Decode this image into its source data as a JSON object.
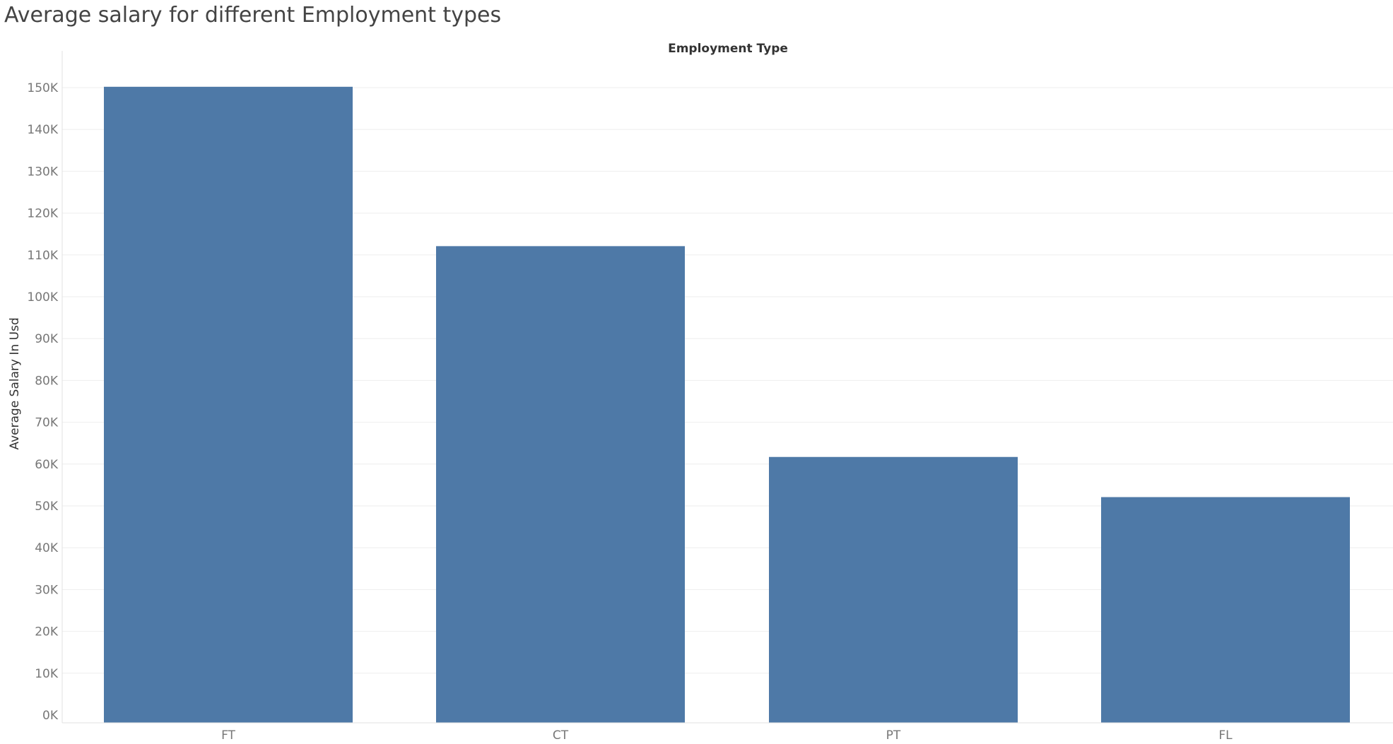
{
  "page": {
    "title": "Average salary for different Employment types"
  },
  "chart_data": {
    "type": "bar",
    "title": "Average salary for different Employment types",
    "column_header": "Employment Type",
    "xlabel": "",
    "ylabel": "Average Salary In Usd",
    "categories": [
      "FT",
      "CT",
      "PT",
      "FL"
    ],
    "values": [
      150200,
      112100,
      61700,
      52100
    ],
    "ylim": [
      0,
      150000
    ],
    "yticks": [
      0,
      10000,
      20000,
      30000,
      40000,
      50000,
      60000,
      70000,
      80000,
      90000,
      100000,
      110000,
      120000,
      130000,
      140000,
      150000
    ],
    "ytick_labels": [
      "0K",
      "10K",
      "20K",
      "30K",
      "40K",
      "50K",
      "60K",
      "70K",
      "80K",
      "90K",
      "100K",
      "110K",
      "120K",
      "130K",
      "140K",
      "150K"
    ],
    "grid": true,
    "bar_color": "#4e79a7",
    "grid_color": "#eeeeee",
    "axis_color": "#e2e2e2"
  }
}
